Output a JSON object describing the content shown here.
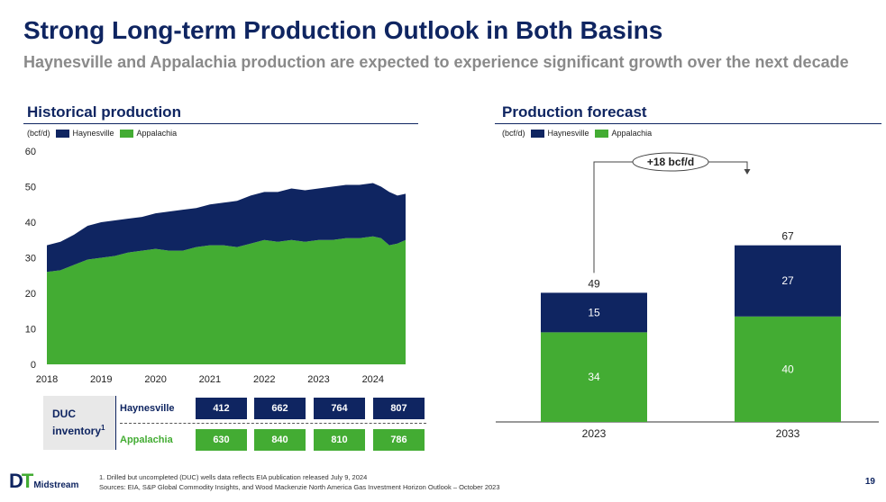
{
  "header": {
    "title": "Strong Long-term Production Outlook in Both Basins",
    "subtitle": "Haynesville and Appalachia production are expected to experience significant growth over the next decade"
  },
  "colors": {
    "haynesville": "#0f2561",
    "appalachia": "#43ac33"
  },
  "legend": {
    "unit": "(bcf/d)",
    "haynesville": "Haynesville",
    "appalachia": "Appalachia"
  },
  "chart_data": [
    {
      "type": "area",
      "title": "Historical production",
      "unit_label": "(bcf/d)",
      "ylim": [
        0,
        60
      ],
      "yticks": [
        0,
        10,
        20,
        30,
        40,
        50,
        60
      ],
      "xticks": [
        "2018",
        "2019",
        "2020",
        "2021",
        "2022",
        "2023",
        "2024"
      ],
      "x": [
        2018.0,
        2018.25,
        2018.5,
        2018.75,
        2019.0,
        2019.25,
        2019.5,
        2019.75,
        2020.0,
        2020.25,
        2020.5,
        2020.75,
        2021.0,
        2021.25,
        2021.5,
        2021.75,
        2022.0,
        2022.25,
        2022.5,
        2022.75,
        2023.0,
        2023.25,
        2023.5,
        2023.75,
        2024.0,
        2024.15,
        2024.3,
        2024.45,
        2024.6
      ],
      "series": [
        {
          "name": "Appalachia",
          "values": [
            26.0,
            26.5,
            28.0,
            29.5,
            30.0,
            30.5,
            31.5,
            32.0,
            32.5,
            32.0,
            32.0,
            33.0,
            33.5,
            33.5,
            33.0,
            34.0,
            35.0,
            34.5,
            35.0,
            34.5,
            35.0,
            35.0,
            35.5,
            35.5,
            36.0,
            35.5,
            33.5,
            34.0,
            35.0
          ]
        },
        {
          "name": "Haynesville",
          "values": [
            7.5,
            8.0,
            8.5,
            9.5,
            10.0,
            10.0,
            9.5,
            9.5,
            10.0,
            11.0,
            11.5,
            11.0,
            11.5,
            12.0,
            13.0,
            13.5,
            13.5,
            14.0,
            14.5,
            14.5,
            14.5,
            15.0,
            15.0,
            15.0,
            15.0,
            14.5,
            15.0,
            13.5,
            13.0
          ]
        }
      ]
    },
    {
      "type": "bar",
      "stacked": true,
      "title": "Production forecast",
      "unit_label": "(bcf/d)",
      "categories": [
        "2023",
        "2033"
      ],
      "series": [
        {
          "name": "Appalachia",
          "values": [
            34,
            40
          ]
        },
        {
          "name": "Haynesville",
          "values": [
            15,
            27
          ]
        }
      ],
      "totals": [
        49,
        67
      ],
      "annotation": "+18 bcf/d"
    }
  ],
  "duc": {
    "label_line1": "DUC",
    "label_line2": "inventory",
    "label_sup": "1",
    "rows": [
      {
        "name": "Haynesville",
        "values": [
          "412",
          "662",
          "764",
          "807"
        ]
      },
      {
        "name": "Appalachia",
        "values": [
          "630",
          "840",
          "810",
          "786"
        ]
      }
    ]
  },
  "footnotes": {
    "note1": "1. Drilled but uncompleted (DUC) wells data reflects EIA publication released July 9, 2024",
    "sources": "Sources: EIA, S&P Global Commodity Insights, and Wood Mackenzie North America Gas Investment Horizon Outlook – October 2023"
  },
  "logo": {
    "mark_d": "D",
    "mark_t": "T",
    "name": "Midstream"
  },
  "page_number": "19"
}
